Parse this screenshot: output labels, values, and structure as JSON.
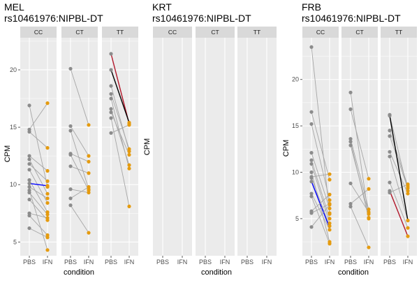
{
  "colors": {
    "pbs_point": "#8c8c8c",
    "ifn_point": "#e59b0f",
    "pair_line": "#a6a6a6",
    "highlight_blue": "#0000ff",
    "highlight_red": "#b2182b",
    "highlight_black": "#000000",
    "panel_bg": "#ebebeb",
    "strip_bg": "#d9d9d9"
  },
  "chart_data": [
    {
      "type": "scatter",
      "title_line1": "MEL",
      "title_line2": "rs10461976:NIPBL-DT",
      "xlabel": "condition",
      "ylabel": "CPM",
      "ylim": [
        3.8,
        22.8
      ],
      "yticks": [
        5,
        10,
        15,
        20
      ],
      "x_categories": [
        "PBS",
        "IFN"
      ],
      "grid": true,
      "facets": [
        {
          "label": "CC",
          "pairs": [
            [
              16.9,
              9.8
            ],
            [
              14.8,
              17.1
            ],
            [
              14.6,
              13.2
            ],
            [
              12.5,
              11.2
            ],
            [
              12.2,
              9.2
            ],
            [
              11.8,
              10.3
            ],
            [
              11.3,
              8.4
            ],
            [
              10.4,
              7.6
            ],
            [
              10.1,
              9.9
            ],
            [
              9.8,
              8.8
            ],
            [
              9.3,
              7.4
            ],
            [
              8.7,
              6.9
            ],
            [
              7.5,
              7.1
            ],
            [
              7.3,
              5.6
            ],
            [
              6.2,
              5.4
            ],
            [
              9.5,
              4.3
            ]
          ],
          "highlight": {
            "pair_index": 8,
            "color": "blue"
          }
        },
        {
          "label": "CT",
          "pairs": [
            [
              20.1,
              15.2
            ],
            [
              15.1,
              12.5
            ],
            [
              14.7,
              9.6
            ],
            [
              12.7,
              12.0
            ],
            [
              11.6,
              11.0
            ],
            [
              9.6,
              9.3
            ],
            [
              8.8,
              9.8
            ],
            [
              8.2,
              5.8
            ],
            [
              12.6,
              9.5
            ]
          ],
          "highlight": null
        },
        {
          "label": "TT",
          "pairs": [
            [
              21.4,
              15.3
            ],
            [
              20.0,
              15.4
            ],
            [
              18.6,
              12.9
            ],
            [
              17.9,
              13.1
            ],
            [
              17.5,
              11.4
            ],
            [
              16.6,
              11.7
            ],
            [
              16.3,
              12.6
            ],
            [
              15.8,
              8.1
            ],
            [
              14.5,
              15.2
            ]
          ],
          "highlight": {
            "pair_index": 0,
            "color": "red",
            "second_pair_index": 1,
            "second_color": "black"
          }
        }
      ]
    },
    {
      "type": "scatter",
      "title_line1": "KRT",
      "title_line2": "rs10461976:NIPBL-DT",
      "xlabel": "condition",
      "ylabel": "CPM",
      "x_categories": [
        "PBS",
        "IFN"
      ],
      "grid": true,
      "facets": [
        {
          "label": "CC",
          "pairs": [],
          "highlight": null
        },
        {
          "label": "CT",
          "pairs": [],
          "highlight": null
        },
        {
          "label": "TT",
          "pairs": [],
          "highlight": null
        }
      ]
    },
    {
      "type": "scatter",
      "title_line1": "FRB",
      "title_line2": "rs10461976:NIPBL-DT",
      "xlabel": "condition",
      "ylabel": "CPM",
      "ylim": [
        1.0,
        24.5
      ],
      "yticks": [
        5,
        10,
        15,
        20
      ],
      "x_categories": [
        "PBS",
        "IFN"
      ],
      "grid": true,
      "facets": [
        {
          "label": "CC",
          "pairs": [
            [
              23.5,
              5.6
            ],
            [
              16.5,
              9.2
            ],
            [
              15.2,
              7.0
            ],
            [
              12.1,
              6.1
            ],
            [
              11.3,
              5.0
            ],
            [
              10.9,
              4.5
            ],
            [
              10.0,
              2.5
            ],
            [
              9.4,
              4.2
            ],
            [
              9.0,
              5.5
            ],
            [
              7.7,
              3.8
            ],
            [
              7.4,
              2.3
            ],
            [
              5.8,
              7.6
            ],
            [
              5.6,
              6.6
            ],
            [
              4.1,
              6.5
            ],
            [
              9.5,
              9.8
            ]
          ],
          "highlight": {
            "pair_index": 8,
            "color": "blue",
            "ifn_override": 4.0
          }
        },
        {
          "label": "CT",
          "pairs": [
            [
              18.6,
              5.1
            ],
            [
              16.8,
              9.3
            ],
            [
              13.6,
              6.0
            ],
            [
              13.3,
              5.0
            ],
            [
              12.9,
              5.5
            ],
            [
              8.8,
              5.7
            ],
            [
              6.6,
              8.2
            ],
            [
              6.3,
              1.9
            ]
          ],
          "highlight": null
        },
        {
          "label": "TT",
          "pairs": [
            [
              16.2,
              8.0
            ],
            [
              14.5,
              8.5
            ],
            [
              13.9,
              8.3
            ],
            [
              12.2,
              7.7
            ],
            [
              11.7,
              4.8
            ],
            [
              8.9,
              4.0
            ],
            [
              8.0,
              3.1
            ],
            [
              7.8,
              8.7
            ],
            [
              16.1,
              4.8
            ]
          ],
          "highlight": {
            "pair_index": 8,
            "color": "black",
            "second_pair_index": 6,
            "second_color": "red"
          }
        }
      ]
    }
  ]
}
